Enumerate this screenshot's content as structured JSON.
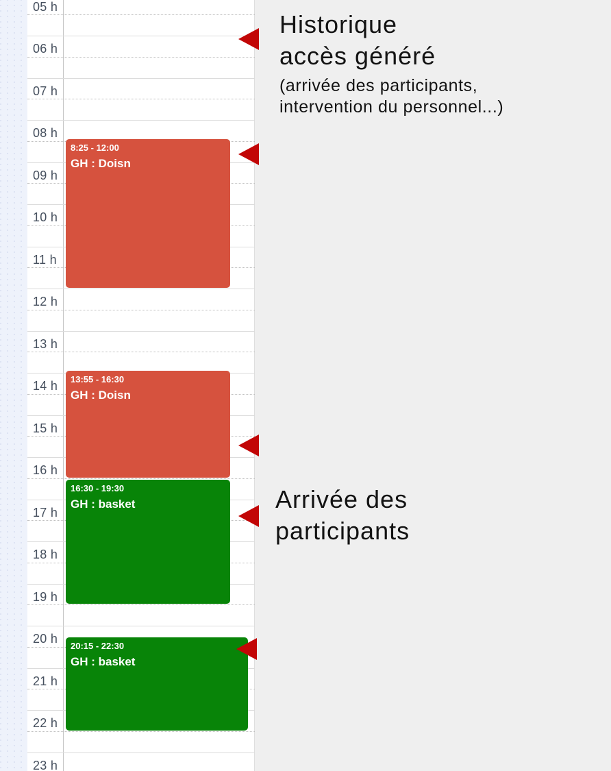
{
  "timeline": {
    "labels": [
      "05 h",
      "06 h",
      "07 h",
      "08 h",
      "09 h",
      "10 h",
      "11 h",
      "12 h",
      "13 h",
      "14 h",
      "15 h",
      "16 h",
      "17 h",
      "18 h",
      "19 h",
      "20 h",
      "21 h",
      "22 h",
      "23 h"
    ]
  },
  "events": [
    {
      "start": "8:25",
      "end": "12:00",
      "time_label": "8:25 - 12:00",
      "title": "GH : Doisn",
      "color": "red"
    },
    {
      "start": "13:55",
      "end": "16:30",
      "time_label": "13:55 - 16:30",
      "title": "GH : Doisn",
      "color": "red"
    },
    {
      "start": "16:30",
      "end": "19:30",
      "time_label": "16:30 - 19:30",
      "title": "GH : basket",
      "color": "green"
    },
    {
      "start": "20:15",
      "end": "22:30",
      "time_label": "20:15 - 22:30",
      "title": "GH : basket",
      "color": "green"
    }
  ],
  "annotations": {
    "historique": {
      "line1": "Historique",
      "line2": "accès généré",
      "sub1": "(arrivée des participants,",
      "sub2": "intervention du personnel...)"
    },
    "arrivee": {
      "line1": "Arrivée des",
      "line2": "participants"
    }
  },
  "colors": {
    "red_event": "#d6523e",
    "green_event": "#088408",
    "arrow": "#c20606",
    "panel_bg": "#efefef",
    "strip_bg": "#eef2fb",
    "strip_dot": "#d7def0",
    "hour_label": "#46505e"
  }
}
